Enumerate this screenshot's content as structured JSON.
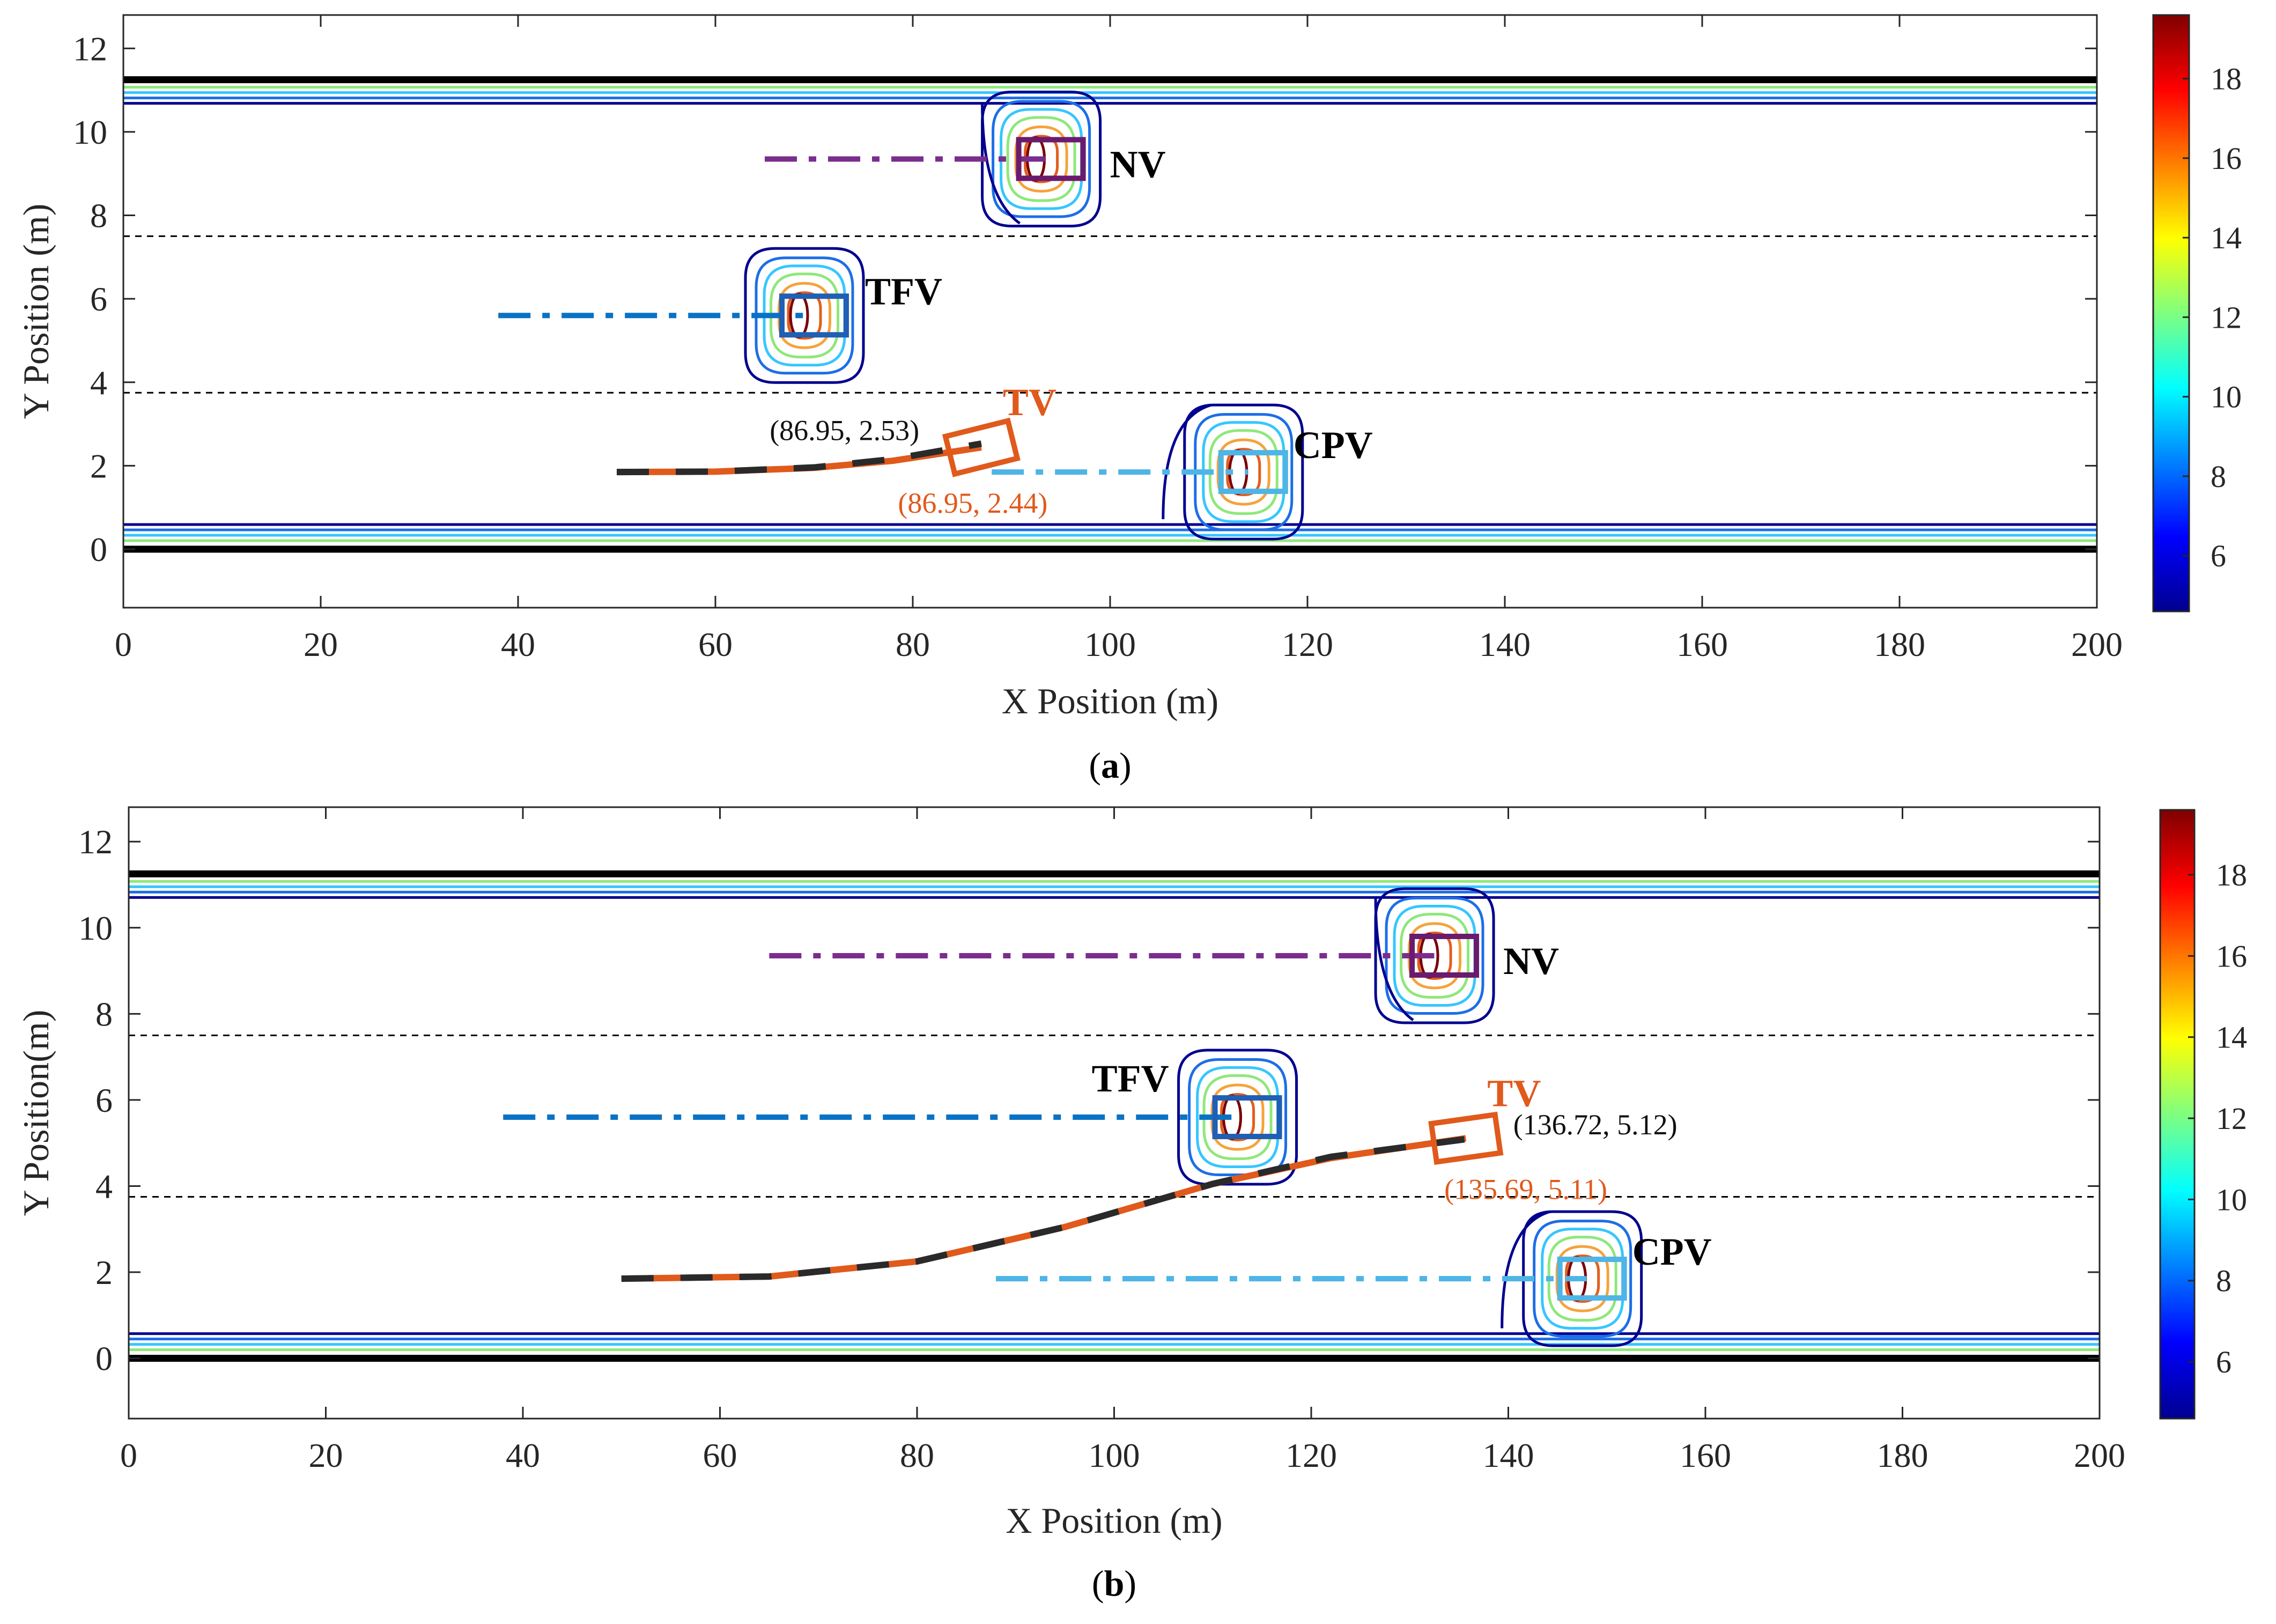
{
  "chart_data": [
    {
      "type": "contour",
      "panel_label": "(a)",
      "panel_letter": "a",
      "xlabel": "X Position (m)",
      "ylabel": "Y Position (m)",
      "xlim": [
        0,
        200
      ],
      "ylim": [
        -1.4,
        12.8
      ],
      "xticks": [
        0,
        20,
        40,
        60,
        80,
        100,
        120,
        140,
        160,
        180,
        200
      ],
      "yticks": [
        0,
        2,
        4,
        6,
        8,
        10,
        12
      ],
      "road_edges": [
        0,
        11.25
      ],
      "lane_dividers": [
        3.75,
        7.5
      ],
      "colorbar": {
        "min": 4.6,
        "max": 19.6,
        "ticks": [
          6,
          8,
          10,
          12,
          14,
          16,
          18
        ]
      },
      "vehicles": [
        {
          "id": "NV",
          "label": "NV",
          "x": 94,
          "y": 9.35,
          "color": "#6a1b6e",
          "trail_color": "#7b2d8e",
          "trail_start": 65,
          "field": "lane_top"
        },
        {
          "id": "TFV",
          "label": "TFV",
          "x": 70,
          "y": 5.6,
          "color": "#1f5fb4",
          "trail_color": "#0a72c4",
          "trail_start": 38,
          "field": "island"
        },
        {
          "id": "CPV",
          "label": "CPV",
          "x": 114.5,
          "y": 1.85,
          "color": "#4fb4e6",
          "trail_color": "#4fb4e6",
          "trail_start": 88,
          "field": "lane_bottom"
        }
      ],
      "target_vehicle": {
        "label": "TV",
        "x": 86.95,
        "y": 2.44,
        "heading_deg": 14,
        "actual_path": [
          [
            50,
            1.85
          ],
          [
            60,
            1.86
          ],
          [
            70,
            1.95
          ],
          [
            78,
            2.12
          ],
          [
            86.95,
            2.44
          ]
        ],
        "planned_path": [
          [
            50,
            1.85
          ],
          [
            60,
            1.86
          ],
          [
            70,
            1.96
          ],
          [
            78,
            2.16
          ],
          [
            86.95,
            2.53
          ]
        ]
      },
      "annotations": [
        {
          "text": "(86.95, 2.53)",
          "x": 65.5,
          "y": 2.87,
          "color": "#111111"
        },
        {
          "text": "(86.95, 2.44)",
          "x": 78.5,
          "y": 1.13,
          "color": "#e05a1c"
        }
      ]
    },
    {
      "type": "contour",
      "panel_label": "(b)",
      "panel_letter": "b",
      "xlabel": "X Position (m)",
      "ylabel": "Y Position(m)",
      "xlim": [
        0,
        200
      ],
      "ylim": [
        -1.4,
        12.8
      ],
      "xticks": [
        0,
        20,
        40,
        60,
        80,
        100,
        120,
        140,
        160,
        180,
        200
      ],
      "yticks": [
        0,
        2,
        4,
        6,
        8,
        10,
        12
      ],
      "road_edges": [
        0,
        11.25
      ],
      "lane_dividers": [
        3.75,
        7.5
      ],
      "colorbar": {
        "min": 4.6,
        "max": 19.6,
        "ticks": [
          6,
          8,
          10,
          12,
          14,
          16,
          18
        ]
      },
      "vehicles": [
        {
          "id": "NV",
          "label": "NV",
          "x": 133.5,
          "y": 9.35,
          "color": "#6a1b6e",
          "trail_color": "#7b2d8e",
          "trail_start": 65,
          "field": "lane_top"
        },
        {
          "id": "TFV",
          "label": "TFV",
          "x": 113.5,
          "y": 5.6,
          "color": "#1f5fb4",
          "trail_color": "#0a72c4",
          "trail_start": 38,
          "field": "island"
        },
        {
          "id": "CPV",
          "label": "CPV",
          "x": 148.5,
          "y": 1.85,
          "color": "#4fb4e6",
          "trail_color": "#4fb4e6",
          "trail_start": 88,
          "field": "lane_bottom"
        }
      ],
      "target_vehicle": {
        "label": "TV",
        "x": 135.69,
        "y": 5.11,
        "heading_deg": 8,
        "actual_path": [
          [
            50,
            1.85
          ],
          [
            65,
            1.9
          ],
          [
            80,
            2.25
          ],
          [
            95,
            3.05
          ],
          [
            110,
            4.05
          ],
          [
            122,
            4.65
          ],
          [
            135.69,
            5.11
          ]
        ],
        "planned_path": [
          [
            50,
            1.85
          ],
          [
            65,
            1.9
          ],
          [
            80,
            2.25
          ],
          [
            95,
            3.05
          ],
          [
            110,
            4.05
          ],
          [
            122,
            4.68
          ],
          [
            136.72,
            5.12
          ]
        ]
      },
      "annotations": [
        {
          "text": "(136.72, 5.12)",
          "x": 140.5,
          "y": 5.45,
          "color": "#111111"
        },
        {
          "text": "(135.69, 5.11)",
          "x": 133.5,
          "y": 3.95,
          "color": "#e05a1c"
        }
      ]
    }
  ]
}
